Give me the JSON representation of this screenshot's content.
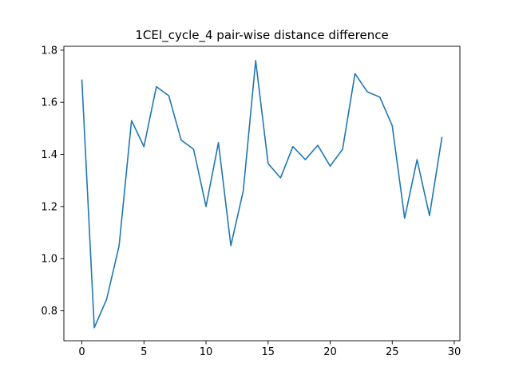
{
  "chart_data": {
    "type": "line",
    "title": "1CEI_cycle_4 pair-wise distance difference",
    "xlabel": "",
    "ylabel": "",
    "xlim": [
      -1.45,
      30.45
    ],
    "ylim": [
      0.685,
      1.815
    ],
    "xticks": [
      0,
      5,
      10,
      15,
      20,
      25,
      30
    ],
    "yticks": [
      0.8,
      1.0,
      1.2,
      1.4,
      1.6,
      1.8
    ],
    "xtick_labels": [
      "0",
      "5",
      "10",
      "15",
      "20",
      "25",
      "30"
    ],
    "ytick_labels": [
      "0.8",
      "1.0",
      "1.2",
      "1.4",
      "1.6",
      "1.8"
    ],
    "grid": false,
    "series": [
      {
        "color": "#1f77b4",
        "x": [
          0,
          1,
          2,
          3,
          4,
          5,
          6,
          7,
          8,
          9,
          10,
          11,
          12,
          13,
          14,
          15,
          16,
          17,
          18,
          19,
          20,
          21,
          22,
          23,
          24,
          25,
          26,
          27,
          28,
          29
        ],
        "values": [
          1.685,
          0.735,
          0.845,
          1.05,
          1.53,
          1.43,
          1.66,
          1.625,
          1.455,
          1.42,
          1.2,
          1.445,
          1.05,
          1.26,
          1.76,
          1.365,
          1.31,
          1.43,
          1.38,
          1.435,
          1.355,
          1.42,
          1.71,
          1.64,
          1.62,
          1.51,
          1.155,
          1.38,
          1.165,
          1.465
        ]
      }
    ]
  }
}
